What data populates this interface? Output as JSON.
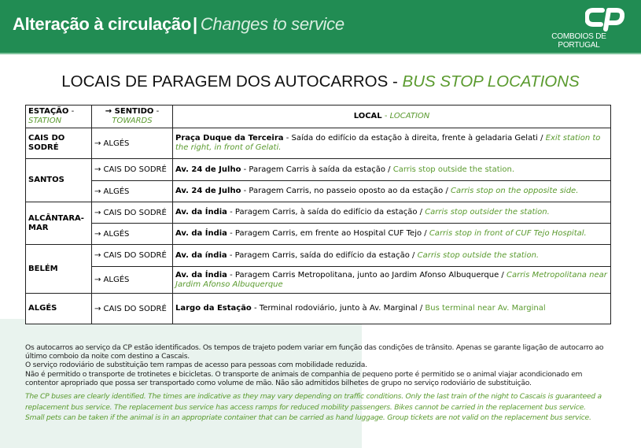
{
  "banner": {
    "title_pt": "Alteração à circulação",
    "separator": "|",
    "title_en": "Changes to service",
    "logo_text": "COMBOIOS DE PORTUGAL",
    "color": "#218c53"
  },
  "page_title": {
    "pt": "LOCAIS DE PARAGEM DOS AUTOCARROS - ",
    "en": "BUS STOP LOCATIONS"
  },
  "table": {
    "headers": {
      "station_pt": "ESTAÇÃO",
      "station_en": "STATION",
      "towards_pt": "→ SENTIDO",
      "towards_en": "TOWARDS",
      "location_pt": "LOCAL",
      "location_en": "LOCATION",
      "dash": " - "
    },
    "stations": [
      {
        "name": "CAIS DO SODRÉ",
        "stops": [
          {
            "towards": "→ ALGÉS",
            "place": "Praça Duque da Terceira",
            "pt": " - Saída do edifício da estação à direita, frente à geladaria Gelati / ",
            "en": "Exit station to the right, in front of Gelati.",
            "en_italic": true
          }
        ]
      },
      {
        "name": "SANTOS",
        "stops": [
          {
            "towards": "→ CAIS DO SODRÉ",
            "place": "Av. 24 de Julho",
            "pt": " - Paragem Carris à saída da estação / ",
            "en": "Carris stop outside the station.",
            "en_italic": false
          },
          {
            "towards": "→ ALGÉS",
            "place": "Av. 24 de Julho",
            "pt": " - Paragem Carris, no passeio oposto ao da estação / ",
            "en": "Carris stop on the opposite side.",
            "en_italic": true
          }
        ]
      },
      {
        "name": "ALCÂNTARA-MAR",
        "stops": [
          {
            "towards": "→ CAIS DO SODRÉ",
            "place": "Av. da Índia",
            "pt": " - Paragem Carris, à saída do edifício da estação / ",
            "en": "Carris stop outsider the station.",
            "en_italic": true
          },
          {
            "towards": "→ ALGÉS",
            "place": "Av. da Índia",
            "pt": " - Paragem Carris, em frente ao Hospital CUF Tejo / ",
            "en": "Carris stop in front of CUF Tejo Hospital.",
            "en_italic": true
          }
        ]
      },
      {
        "name": "BELÉM",
        "stops": [
          {
            "towards": "→ CAIS DO SODRÉ",
            "place": "Av. da índia",
            "pt": " - Paragem Carris, saída do edifício da estação / ",
            "en": "Carris stop outside the station.",
            "en_italic": true
          },
          {
            "towards": "→ ALGÉS",
            "place": "Av. da Índia",
            "pt": " - Paragem Carris Metropolitana, junto ao Jardim Afonso Albuquerque / ",
            "en": "Carris Metropolitana near Jardim Afonso Albuquerque",
            "en_italic": true
          }
        ]
      },
      {
        "name": "ALGÉS",
        "stops": [
          {
            "towards": "→ CAIS DO SODRÉ",
            "place": "Largo da Estação",
            "pt": " - Terminal rodoviário, junto à Av. Marginal / ",
            "en": "Bus terminal near Av. Marginal",
            "en_italic": false
          }
        ]
      }
    ]
  },
  "notes_pt": [
    "Os autocarros ao serviço da CP estão identificados. Os tempos de trajeto podem variar em função das condições de trânsito. Apenas se garante ligação de autocarro ao último comboio da noite com destino a Cascais.",
    "O serviço rodoviário de substituição tem rampas de acesso para pessoas com mobilidade reduzida.",
    "Não é permitido o transporte de trotinetes e bicicletas. O transporte de animais de companhia de pequeno porte é permitido se o animal viajar acondicionado em contentor apropriado que possa ser transportado como volume de mão. Não são admitidos bilhetes de grupo no serviço rodoviário de substituição."
  ],
  "notes_en": [
    "The CP buses are clearly identified. The times are indicative as they may vary depending on traffic conditions. Only the last train of the night to Cascais is guaranteed a replacement bus service. The replacement bus service has access ramps for reduced mobility passengers. Bikes cannot be carried in the replacement bus service.",
    "Small pets can be taken if the animal is in an appropriate container that can be carried as hand luggage. Group tickets are not valid on the replacement bus service."
  ],
  "colors": {
    "accent_green": "#5a9a2e",
    "banner": "#218c53"
  }
}
